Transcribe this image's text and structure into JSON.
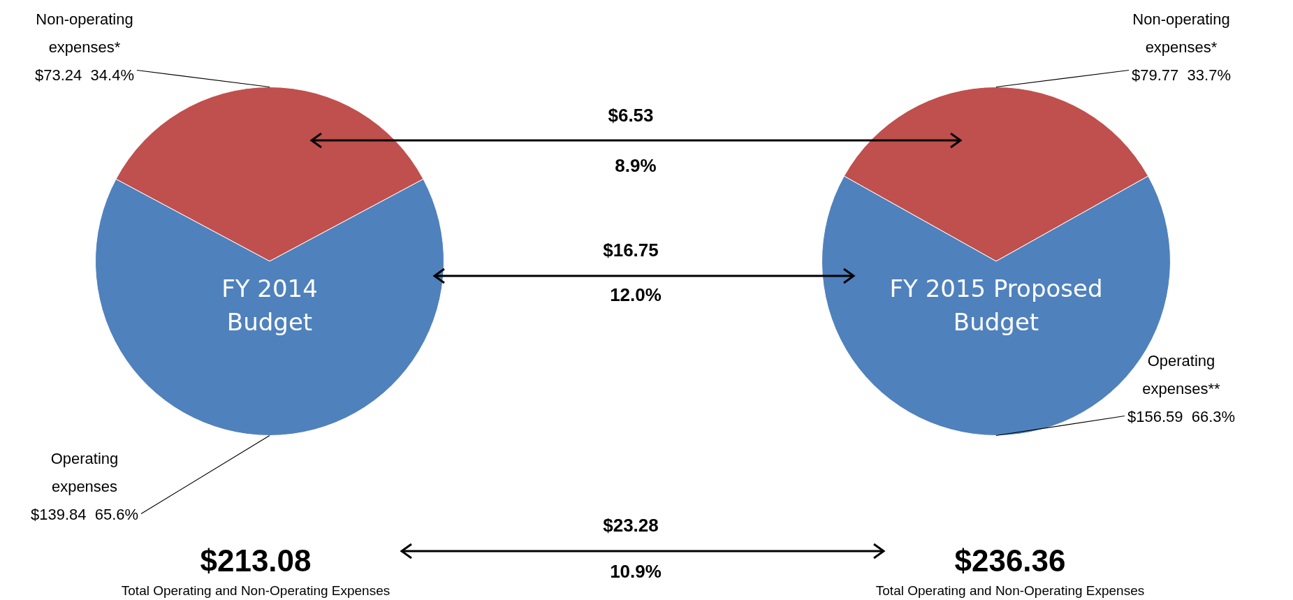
{
  "chart_data": [
    {
      "type": "pie",
      "title": "FY 2014 Budget",
      "categories": [
        "Non-operating expenses*",
        "Operating expenses"
      ],
      "values": [
        73.24,
        139.84
      ],
      "colors": [
        "#c0504d",
        "#4f81bd"
      ],
      "value_labels": [
        "$73.24  34.4%",
        "$139.84  65.6%"
      ],
      "annotations": [
        "$213.08",
        "Total Operating and Non-Operating Expenses"
      ]
    },
    {
      "type": "pie",
      "title": "FY 2015 Proposed Budget",
      "categories": [
        "Non-operating expenses*",
        "Operating expenses**"
      ],
      "values": [
        79.77,
        156.59
      ],
      "colors": [
        "#c0504d",
        "#4f81bd"
      ],
      "value_labels": [
        "$79.77  33.7%",
        "$156.59  66.3%"
      ],
      "annotations": [
        "$236.36",
        "Total Operating and Non-Operating Expenses"
      ]
    },
    {
      "type": "other",
      "annotations": [
        "$6.53",
        "8.9%",
        "$16.75",
        "12.0%",
        "$23.28",
        "10.9%"
      ]
    }
  ]
}
